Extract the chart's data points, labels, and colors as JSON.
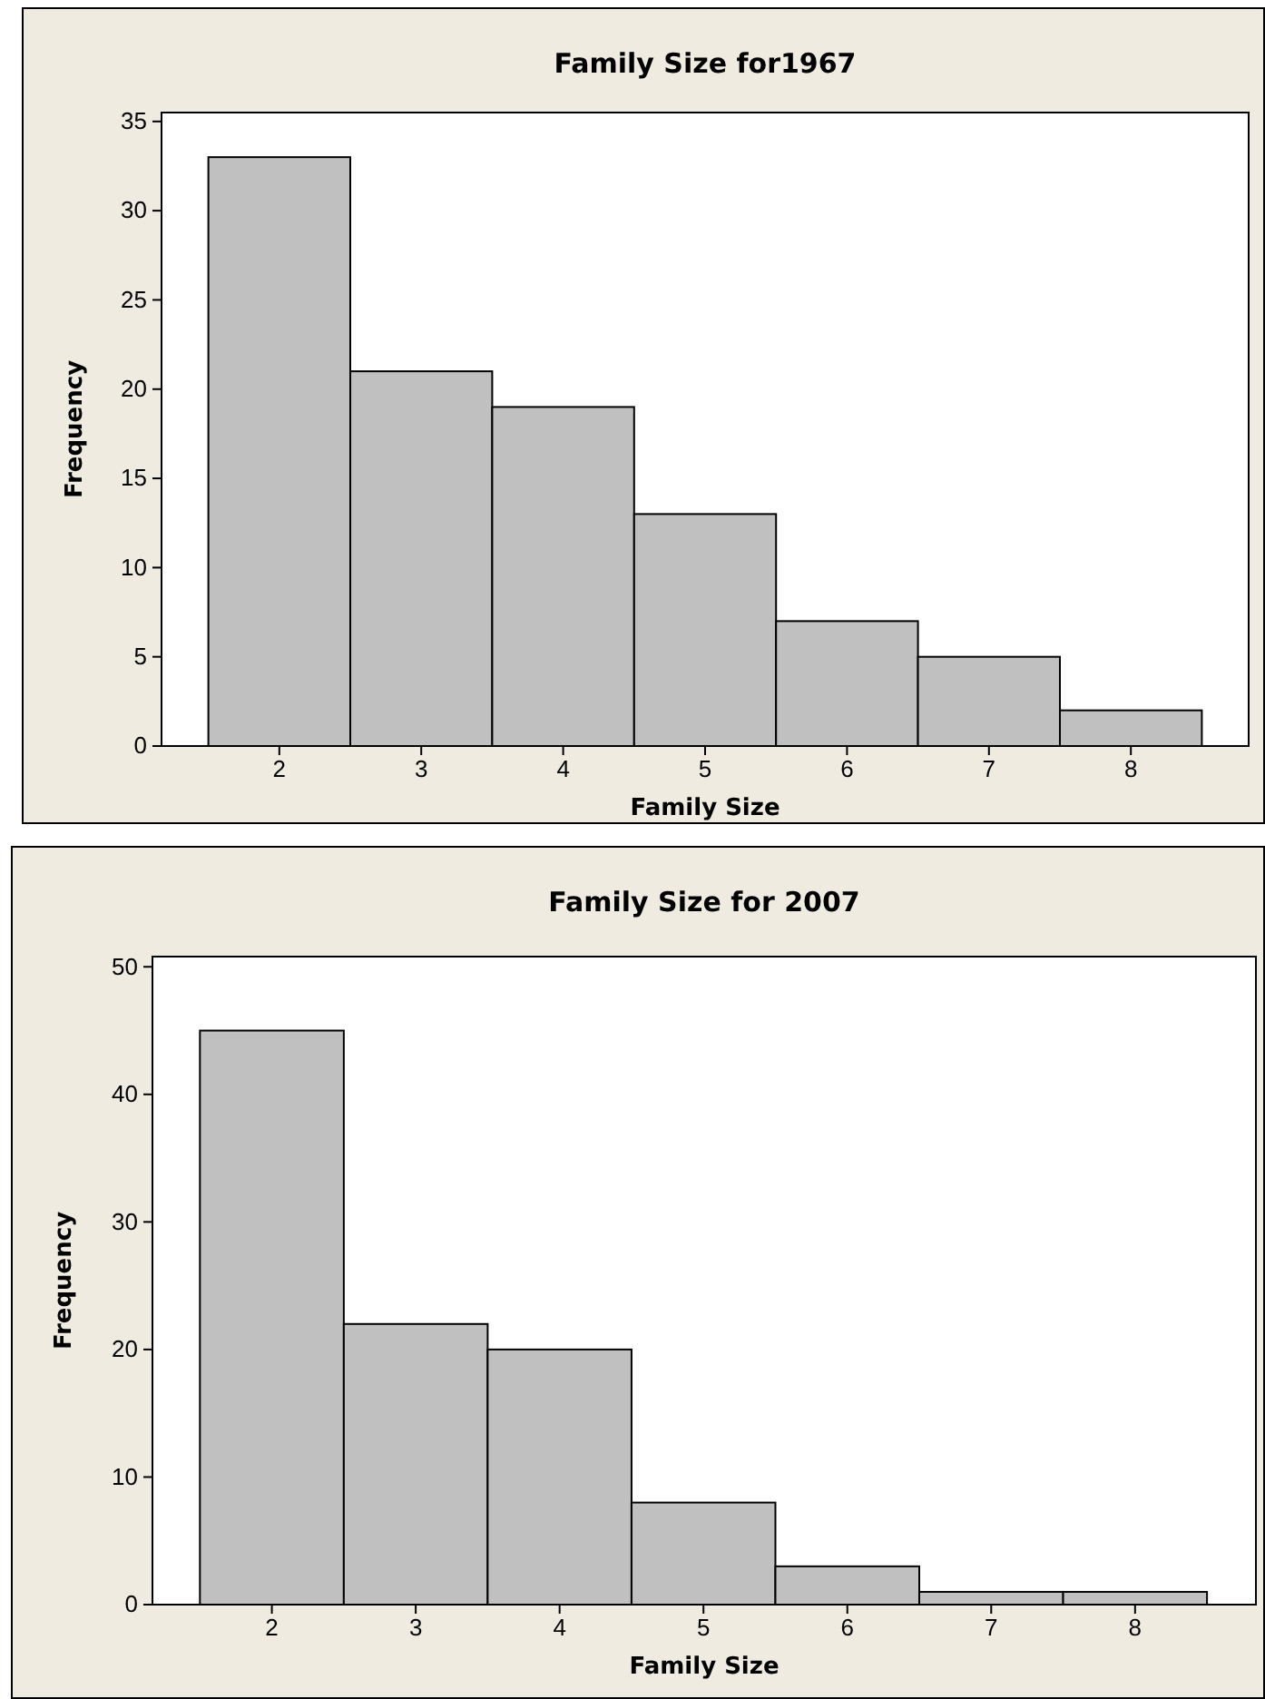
{
  "chart_data": [
    {
      "type": "histogram",
      "title": "Family Size for1967",
      "xlabel": "Family Size",
      "ylabel": "Frequency",
      "bins": [
        1.5,
        2.5,
        3.5,
        4.5,
        5.5,
        6.5,
        7.5,
        8.5
      ],
      "values": [
        33,
        21,
        19,
        13,
        7,
        5,
        2
      ],
      "color": "#c0c0c0",
      "xlim": [
        1.17,
        8.83
      ],
      "xticks": [
        2,
        3,
        4,
        5,
        6,
        7,
        8
      ],
      "ylim": [
        0,
        35.5
      ],
      "yticks": [
        0,
        5,
        10,
        15,
        20,
        25,
        30,
        35
      ]
    },
    {
      "type": "histogram",
      "title": "Family Size for 2007",
      "xlabel": "Family Size",
      "ylabel": "Frequency",
      "bins": [
        1.5,
        2.5,
        3.5,
        4.5,
        5.5,
        6.5,
        7.5,
        8.5
      ],
      "values": [
        45,
        22,
        20,
        8,
        3,
        1,
        1
      ],
      "color": "#c0c0c0",
      "xlim": [
        1.17,
        8.84
      ],
      "xticks": [
        2,
        3,
        4,
        5,
        6,
        7,
        8
      ],
      "ylim": [
        0,
        50.8
      ],
      "yticks": [
        0,
        10,
        20,
        30,
        40,
        50
      ]
    }
  ]
}
